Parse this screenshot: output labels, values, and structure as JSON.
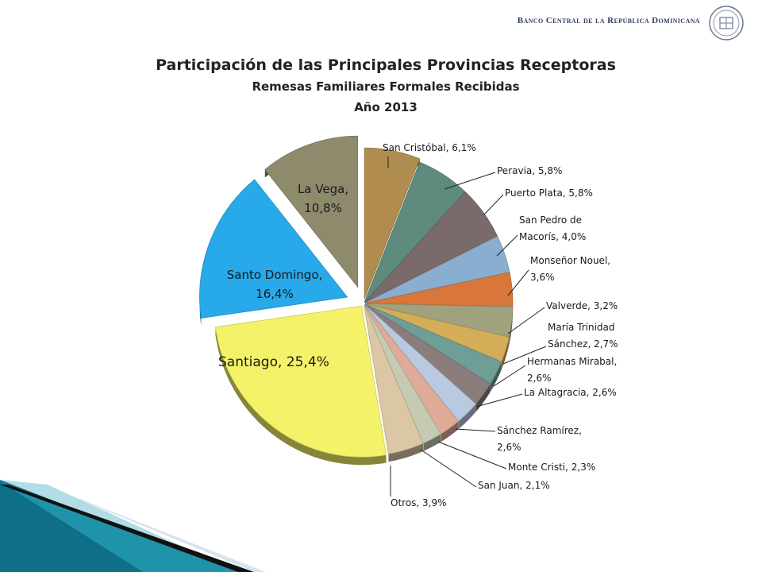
{
  "header": {
    "bank_name": "Banco Central de la República Dominicana"
  },
  "chart_data": {
    "type": "pie",
    "title": "Participación de las Principales Provincias Receptoras",
    "subtitle": "Remesas Familiares Formales Recibidas",
    "period": "Año 2013",
    "slices": [
      {
        "name": "San Cristóbal",
        "label": "San Cristóbal, 6,1%",
        "value": 6.1,
        "color": "#b08d4e"
      },
      {
        "name": "Peravia",
        "label": "Peravia, 5,8%",
        "value": 5.8,
        "color": "#5f8a7e"
      },
      {
        "name": "Puerto Plata",
        "label": "Puerto Plata, 5,8%",
        "value": 5.8,
        "color": "#7a6a6a"
      },
      {
        "name": "San Pedro de Macorís",
        "label": "San Pedro de Macorís, 4,0%",
        "value": 4.0,
        "color": "#8aaed0"
      },
      {
        "name": "Monseñor Nouel",
        "label": "Monseñor Nouel, 3,6%",
        "value": 3.6,
        "color": "#d9773a"
      },
      {
        "name": "Valverde",
        "label": "Valverde, 3,2%",
        "value": 3.2,
        "color": "#9fa27c"
      },
      {
        "name": "María Trinidad Sánchez",
        "label": "María Trinidad Sánchez, 2,7%",
        "value": 2.7,
        "color": "#d4ad58"
      },
      {
        "name": "Hermanas Mirabal",
        "label": "Hermanas Mirabal, 2,6%",
        "value": 2.6,
        "color": "#6e9e96"
      },
      {
        "name": "La Altagracia",
        "label": "La Altagracia, 2,6%",
        "value": 2.6,
        "color": "#8c7d7d"
      },
      {
        "name": "Sánchez Ramírez",
        "label": "Sánchez Ramírez, 2,6%",
        "value": 2.6,
        "color": "#b8c9e0"
      },
      {
        "name": "Monte Cristi",
        "label": "Monte Cristi, 2,3%",
        "value": 2.3,
        "color": "#e0aa98"
      },
      {
        "name": "San Juan",
        "label": "San Juan, 2,1%",
        "value": 2.1,
        "color": "#c5cbb2"
      },
      {
        "name": "Otros",
        "label": "Otros, 3,9%",
        "value": 3.9,
        "color": "#dcc7a5"
      },
      {
        "name": "Santiago",
        "label": "Santiago, 25,4%",
        "value": 25.4,
        "color": "#f4f268"
      },
      {
        "name": "Santo Domingo",
        "label": "Santo Domingo, 16,4%",
        "value": 16.4,
        "color": "#27a9ea"
      },
      {
        "name": "La Vega",
        "label": "La Vega, 10,8%",
        "value": 10.8,
        "color": "#8e8a6c"
      }
    ],
    "legend": "none"
  }
}
